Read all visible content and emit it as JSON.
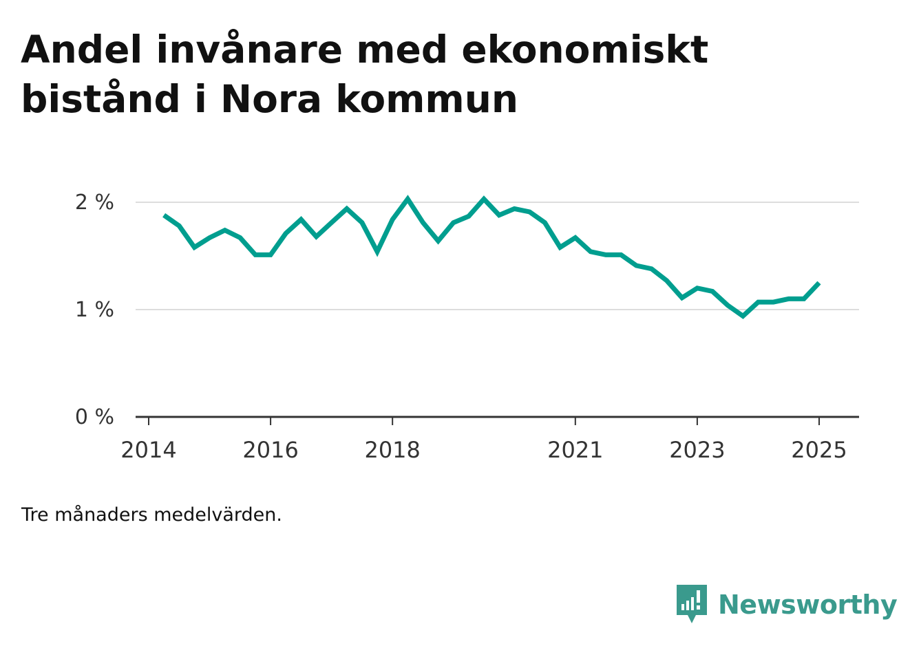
{
  "title_line1": "Andel invånare med ekonomiskt",
  "title_line2": "bistånd i Nora kommun",
  "note": "Tre månaders medelvärden.",
  "brand": "Newsworthy",
  "colors": {
    "line": "#009e8f",
    "brand": "#3a9a8d",
    "grid": "#dddddd",
    "axis": "#333333"
  },
  "chart_data": {
    "type": "line",
    "x_tick_labels": [
      "2014",
      "2016",
      "2018",
      "2021",
      "2023",
      "2025"
    ],
    "y_tick_labels": [
      "0 %",
      "1 %",
      "2 %"
    ],
    "ylim": [
      0,
      2.2
    ],
    "grid": true,
    "series": [
      {
        "x": [
          "2014-04",
          "2014-07",
          "2014-10",
          "2015-01",
          "2015-04",
          "2015-07",
          "2015-10",
          "2016-01",
          "2016-04",
          "2016-07",
          "2016-10",
          "2017-01",
          "2017-04",
          "2017-07",
          "2017-10",
          "2018-01",
          "2018-04",
          "2018-07",
          "2018-10",
          "2019-01",
          "2019-04",
          "2019-07",
          "2019-10",
          "2020-01",
          "2020-04",
          "2020-07",
          "2020-10",
          "2021-01",
          "2021-04",
          "2021-07",
          "2021-10",
          "2022-01",
          "2022-04",
          "2022-07",
          "2022-10",
          "2023-01",
          "2023-04",
          "2023-07",
          "2023-10",
          "2024-01",
          "2024-04",
          "2024-07",
          "2024-10",
          "2025-01",
          "2025-04"
        ],
        "values": [
          1.88,
          1.78,
          1.58,
          1.67,
          1.74,
          1.67,
          1.51,
          1.51,
          1.71,
          1.84,
          1.68,
          1.81,
          1.94,
          1.81,
          1.54,
          1.84,
          2.03,
          1.81,
          1.64,
          1.81,
          1.87,
          2.03,
          1.88,
          1.94,
          1.91,
          1.81,
          1.58,
          1.67,
          1.54,
          1.51,
          1.51,
          1.41,
          1.38,
          1.27,
          1.11,
          1.2,
          1.17,
          1.04,
          0.94,
          1.07,
          1.07,
          1.1,
          1.1,
          1.25,
          null
        ]
      }
    ]
  }
}
